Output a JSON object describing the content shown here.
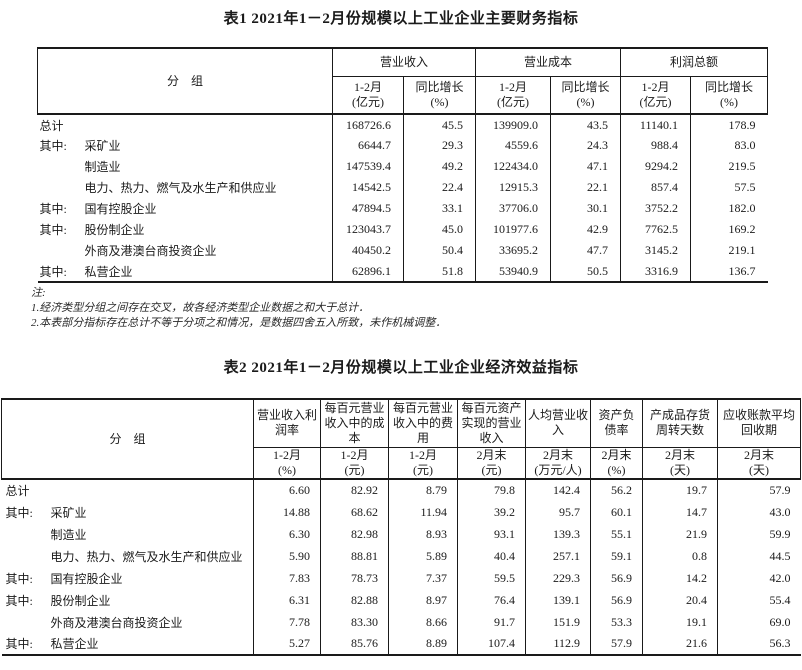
{
  "table1": {
    "title": "表1 2021年1－2月份规模以上工业企业主要财务指标",
    "stub_header": "分　组",
    "groups": [
      {
        "label": "营业收入",
        "sub": [
          {
            "p": "1-2月",
            "u": "(亿元)"
          },
          {
            "p": "同比增长",
            "u": "(%)"
          }
        ]
      },
      {
        "label": "营业成本",
        "sub": [
          {
            "p": "1-2月",
            "u": "(亿元)"
          },
          {
            "p": "同比增长",
            "u": "(%)"
          }
        ]
      },
      {
        "label": "利润总额",
        "sub": [
          {
            "p": "1-2月",
            "u": "(亿元)"
          },
          {
            "p": "同比增长",
            "u": "(%)"
          }
        ]
      }
    ],
    "rows": [
      {
        "prefix": "",
        "indent": false,
        "label": "总计",
        "values": [
          "168726.6",
          "45.5",
          "139909.0",
          "43.5",
          "11140.1",
          "178.9"
        ]
      },
      {
        "prefix": "其中:",
        "indent": false,
        "label": "采矿业",
        "values": [
          "6644.7",
          "29.3",
          "4559.6",
          "24.3",
          "988.4",
          "83.0"
        ]
      },
      {
        "prefix": "",
        "indent": true,
        "label": "制造业",
        "values": [
          "147539.4",
          "49.2",
          "122434.0",
          "47.1",
          "9294.2",
          "219.5"
        ]
      },
      {
        "prefix": "",
        "indent": true,
        "label": "电力、热力、燃气及水生产和供应业",
        "values": [
          "14542.5",
          "22.4",
          "12915.3",
          "22.1",
          "857.4",
          "57.5"
        ]
      },
      {
        "prefix": "其中:",
        "indent": false,
        "label": "国有控股企业",
        "values": [
          "47894.5",
          "33.1",
          "37706.0",
          "30.1",
          "3752.2",
          "182.0"
        ]
      },
      {
        "prefix": "其中:",
        "indent": false,
        "label": "股份制企业",
        "values": [
          "123043.7",
          "45.0",
          "101977.6",
          "42.9",
          "7762.5",
          "169.2"
        ]
      },
      {
        "prefix": "",
        "indent": true,
        "label": "外商及港澳台商投资企业",
        "values": [
          "40450.2",
          "50.4",
          "33695.2",
          "47.7",
          "3145.2",
          "219.1"
        ]
      },
      {
        "prefix": "其中:",
        "indent": false,
        "label": "私营企业",
        "values": [
          "62896.1",
          "51.8",
          "53940.9",
          "50.5",
          "3316.9",
          "136.7"
        ]
      }
    ]
  },
  "notes": {
    "label": "注:",
    "line1": "1.经济类型分组之间存在交叉，故各经济类型企业数据之和大于总计．",
    "line2": "2.本表部分指标存在总计不等于分项之和情况，是数据四舍五入所致，未作机械调整．"
  },
  "table2": {
    "title": "表2 2021年1－2月份规模以上工业企业经济效益指标",
    "stub_header": "分　组",
    "columns": [
      {
        "label": "营业收入利润率",
        "p": "1-2月",
        "u": "(%)"
      },
      {
        "label": "每百元营业收入中的成本",
        "p": "1-2月",
        "u": "(元)"
      },
      {
        "label": "每百元营业收入中的费用",
        "p": "1-2月",
        "u": "(元)"
      },
      {
        "label": "每百元资产实现的营业收入",
        "p": "2月末",
        "u": "(元)"
      },
      {
        "label": "人均营业收入",
        "p": "2月末",
        "u": "(万元/人)"
      },
      {
        "label": "资产负债率",
        "p": "2月末",
        "u": "(%)"
      },
      {
        "label": "产成品存货周转天数",
        "p": "2月末",
        "u": "(天)"
      },
      {
        "label": "应收账款平均回收期",
        "p": "2月末",
        "u": "(天)"
      }
    ],
    "rows": [
      {
        "prefix": "",
        "indent": false,
        "label": "总计",
        "values": [
          "6.60",
          "82.92",
          "8.79",
          "79.8",
          "142.4",
          "56.2",
          "19.7",
          "57.9"
        ]
      },
      {
        "prefix": "其中:",
        "indent": false,
        "label": "采矿业",
        "values": [
          "14.88",
          "68.62",
          "11.94",
          "39.2",
          "95.7",
          "60.1",
          "14.7",
          "43.0"
        ]
      },
      {
        "prefix": "",
        "indent": true,
        "label": "制造业",
        "values": [
          "6.30",
          "82.98",
          "8.93",
          "93.1",
          "139.3",
          "55.1",
          "21.9",
          "59.9"
        ]
      },
      {
        "prefix": "",
        "indent": true,
        "label": "电力、热力、燃气及水生产和供应业",
        "values": [
          "5.90",
          "88.81",
          "5.89",
          "40.4",
          "257.1",
          "59.1",
          "0.8",
          "44.5"
        ]
      },
      {
        "prefix": "其中:",
        "indent": false,
        "label": "国有控股企业",
        "values": [
          "7.83",
          "78.73",
          "7.37",
          "59.5",
          "229.3",
          "56.9",
          "14.2",
          "42.0"
        ]
      },
      {
        "prefix": "其中:",
        "indent": false,
        "label": "股份制企业",
        "values": [
          "6.31",
          "82.88",
          "8.97",
          "76.4",
          "139.1",
          "56.9",
          "20.4",
          "55.4"
        ]
      },
      {
        "prefix": "",
        "indent": true,
        "label": "外商及港澳台商投资企业",
        "values": [
          "7.78",
          "83.30",
          "8.66",
          "91.7",
          "151.9",
          "53.3",
          "19.1",
          "69.0"
        ]
      },
      {
        "prefix": "其中:",
        "indent": false,
        "label": "私营企业",
        "values": [
          "5.27",
          "85.76",
          "8.89",
          "107.4",
          "112.9",
          "57.9",
          "21.6",
          "56.3"
        ]
      }
    ]
  }
}
